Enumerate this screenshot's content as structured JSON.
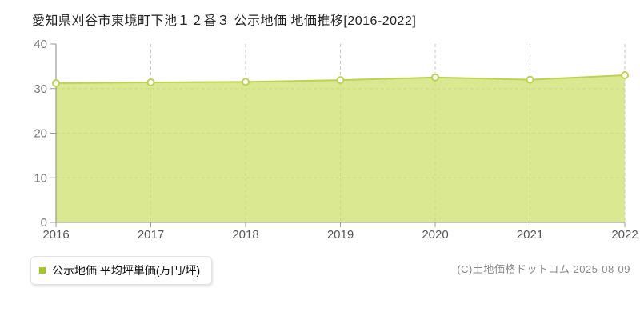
{
  "title": "愛知県刈谷市東境町下池１２番３ 公示地価 地価推移[2016-2022]",
  "legend": {
    "label": "公示地価 平均坪単価(万円/坪)",
    "marker_color": "#9fc820"
  },
  "copyright": "(C)土地価格ドットコム 2025-08-09",
  "chart_data": {
    "type": "area",
    "title": "愛知県刈谷市東境町下池１２番３ 公示地価 地価推移[2016-2022]",
    "categories": [
      "2016",
      "2017",
      "2018",
      "2019",
      "2020",
      "2021",
      "2022"
    ],
    "series": [
      {
        "name": "公示地価 平均坪単価(万円/坪)",
        "values": [
          31.2,
          31.4,
          31.5,
          31.9,
          32.5,
          32.0,
          33.0
        ]
      }
    ],
    "xlabel": "",
    "ylabel": "",
    "ylim": [
      0,
      40
    ],
    "yticks": [
      0,
      10,
      20,
      30,
      40
    ],
    "grid": "dashed",
    "legend_position": "bottom-left",
    "colors": {
      "line": "#b9d44e",
      "fill": "rgba(205,224,110,0.75)",
      "point_fill": "#ffffff",
      "grid": "#c6c6c6",
      "axis": "#8a8a8a",
      "tick": "#999999",
      "ytick_label": "#777777",
      "xtick_label": "#555555"
    },
    "point_style": "hollow-circle"
  }
}
